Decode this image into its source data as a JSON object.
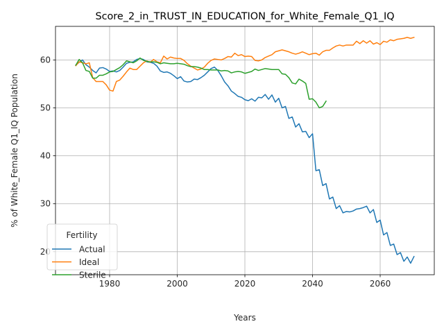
{
  "chart_data": {
    "type": "line",
    "title": "Score_2_in_TRUST_IN_EDUCATION_for_White_Female_Q1_IQ",
    "xlabel": "Years",
    "ylabel": "% of White_Female Q1_IQ Population",
    "xlim": [
      1964,
      2076
    ],
    "ylim": [
      15.2,
      67.0
    ],
    "xticks": [
      1980,
      2000,
      2020,
      2040,
      2060
    ],
    "yticks": [
      20,
      30,
      40,
      50,
      60
    ],
    "grid": true,
    "legend": {
      "title": "Fertility",
      "placement": "lower-left"
    },
    "colors": {
      "Actual": "#1f77b4",
      "Ideal": "#ff7f0e",
      "Sterile": "#2ca02c"
    },
    "series": [
      {
        "name": "Actual",
        "x": [
          1970,
          1971,
          1972,
          1973,
          1974,
          1975,
          1976,
          1977,
          1978,
          1979,
          1980,
          1981,
          1982,
          1983,
          1984,
          1985,
          1986,
          1987,
          1988,
          1989,
          1990,
          1991,
          1992,
          1993,
          1994,
          1995,
          1996,
          1997,
          1998,
          1999,
          2000,
          2001,
          2002,
          2003,
          2004,
          2005,
          2006,
          2007,
          2008,
          2009,
          2010,
          2011,
          2012,
          2013,
          2014,
          2015,
          2016,
          2017,
          2018,
          2019,
          2020,
          2021,
          2022,
          2023,
          2024,
          2025,
          2026,
          2027,
          2028,
          2029,
          2030,
          2031,
          2032,
          2033,
          2034,
          2035,
          2036,
          2037,
          2038,
          2039,
          2040,
          2041,
          2042,
          2043,
          2044,
          2045,
          2046,
          2047,
          2048,
          2049,
          2050,
          2051,
          2052,
          2053,
          2054,
          2055,
          2056,
          2057,
          2058,
          2059,
          2060,
          2061,
          2062,
          2063,
          2064,
          2065,
          2066,
          2067,
          2068,
          2069,
          2070
        ],
        "values": [
          58.9,
          59.5,
          60.0,
          59.0,
          58.5,
          57.8,
          57.3,
          58.3,
          58.4,
          58.1,
          57.6,
          57.7,
          57.5,
          57.8,
          58.5,
          59.3,
          59.5,
          59.6,
          60.1,
          60.3,
          60.1,
          59.6,
          59.5,
          59.3,
          58.7,
          57.7,
          57.4,
          57.5,
          57.2,
          56.7,
          56.1,
          56.5,
          55.6,
          55.4,
          55.5,
          56.0,
          55.9,
          56.3,
          56.8,
          57.5,
          58.2,
          58.5,
          57.8,
          56.7,
          55.4,
          54.6,
          53.5,
          53.0,
          52.4,
          52.2,
          51.7,
          51.5,
          51.9,
          51.4,
          52.2,
          52.1,
          52.8,
          51.8,
          52.7,
          51.2,
          52.0,
          50.0,
          50.3,
          47.8,
          48.1,
          46.0,
          46.7,
          45.0,
          45.1,
          43.8,
          44.6,
          36.9,
          37.1,
          33.8,
          34.2,
          31.0,
          31.4,
          29.0,
          29.6,
          28.1,
          28.4,
          28.3,
          28.5,
          28.9,
          29.0,
          29.2,
          29.5,
          28.1,
          28.8,
          26.1,
          26.6,
          23.5,
          24.0,
          21.3,
          21.6,
          19.4,
          19.8,
          18.0,
          18.9,
          17.6,
          19.0
        ]
      },
      {
        "name": "Ideal",
        "x": [
          1970,
          1971,
          1972,
          1973,
          1974,
          1975,
          1976,
          1977,
          1978,
          1979,
          1980,
          1981,
          1982,
          1983,
          1984,
          1985,
          1986,
          1987,
          1988,
          1989,
          1990,
          1991,
          1992,
          1993,
          1994,
          1995,
          1996,
          1997,
          1998,
          1999,
          2000,
          2001,
          2002,
          2003,
          2004,
          2005,
          2006,
          2007,
          2008,
          2009,
          2010,
          2011,
          2012,
          2013,
          2014,
          2015,
          2016,
          2017,
          2018,
          2019,
          2020,
          2021,
          2022,
          2023,
          2024,
          2025,
          2026,
          2027,
          2028,
          2029,
          2030,
          2031,
          2032,
          2033,
          2034,
          2035,
          2036,
          2037,
          2038,
          2039,
          2040,
          2041,
          2042,
          2043,
          2044,
          2045,
          2046,
          2047,
          2048,
          2049,
          2050,
          2051,
          2052,
          2053,
          2054,
          2055,
          2056,
          2057,
          2058,
          2059,
          2060,
          2061,
          2062,
          2063,
          2064,
          2065,
          2066,
          2067,
          2068,
          2069,
          2070
        ],
        "values": [
          58.8,
          59.6,
          59.4,
          59.2,
          59.4,
          56.3,
          55.5,
          55.5,
          55.5,
          54.8,
          53.7,
          53.5,
          55.5,
          55.8,
          56.6,
          57.5,
          58.3,
          58.0,
          58.0,
          58.7,
          59.4,
          59.8,
          59.5,
          60.1,
          59.6,
          59.4,
          60.8,
          60.2,
          60.6,
          60.4,
          60.3,
          60.3,
          59.9,
          59.2,
          58.7,
          58.3,
          57.9,
          58.1,
          58.5,
          59.3,
          59.9,
          60.2,
          60.1,
          60.0,
          60.3,
          60.7,
          60.6,
          61.4,
          60.9,
          61.1,
          60.7,
          60.8,
          60.7,
          59.9,
          59.8,
          60.0,
          60.5,
          60.8,
          61.1,
          61.7,
          61.9,
          62.1,
          61.9,
          61.7,
          61.4,
          61.2,
          61.4,
          61.7,
          61.4,
          61.1,
          61.3,
          61.4,
          61.0,
          61.7,
          62.0,
          62.0,
          62.5,
          62.9,
          63.1,
          62.9,
          63.1,
          63.1,
          63.1,
          63.9,
          63.4,
          64.0,
          63.5,
          64.0,
          63.3,
          63.6,
          63.2,
          63.9,
          63.7,
          64.2,
          64.0,
          64.3,
          64.4,
          64.5,
          64.7,
          64.5,
          64.7
        ]
      },
      {
        "name": "Sterile",
        "x": [
          1970,
          1971,
          1972,
          1973,
          1974,
          1975,
          1976,
          1977,
          1978,
          1979,
          1980,
          1981,
          1982,
          1983,
          1984,
          1985,
          1986,
          1987,
          1988,
          1989,
          1990,
          1991,
          1992,
          1993,
          1994,
          1995,
          1996,
          1997,
          1998,
          1999,
          2000,
          2001,
          2002,
          2003,
          2004,
          2005,
          2006,
          2007,
          2008,
          2009,
          2010,
          2011,
          2012,
          2013,
          2014,
          2015,
          2016,
          2017,
          2018,
          2019,
          2020,
          2021,
          2022,
          2023,
          2024,
          2025,
          2026,
          2027,
          2028,
          2029,
          2030,
          2031,
          2032,
          2033,
          2034,
          2035,
          2036,
          2037,
          2038,
          2039,
          2040,
          2041,
          2042,
          2043,
          2044
        ],
        "values": [
          58.9,
          60.1,
          59.4,
          57.8,
          57.6,
          56.2,
          56.2,
          56.8,
          56.8,
          57.1,
          57.5,
          57.6,
          58.0,
          58.4,
          59.0,
          59.8,
          59.6,
          59.4,
          59.8,
          60.4,
          59.9,
          59.7,
          59.6,
          59.6,
          59.5,
          59.2,
          59.4,
          59.3,
          59.2,
          59.2,
          59.3,
          59.2,
          59.1,
          58.8,
          58.6,
          58.6,
          58.5,
          58.3,
          58.0,
          58.0,
          57.9,
          57.9,
          57.9,
          57.7,
          57.8,
          57.7,
          57.3,
          57.5,
          57.6,
          57.5,
          57.2,
          57.4,
          57.6,
          58.1,
          57.8,
          58.0,
          58.2,
          58.1,
          58.0,
          58.0,
          58.0,
          57.1,
          57.0,
          56.3,
          55.2,
          55.0,
          56.0,
          55.6,
          55.1,
          51.8,
          51.9,
          51.2,
          50.0,
          50.3,
          51.4
        ]
      }
    ]
  }
}
